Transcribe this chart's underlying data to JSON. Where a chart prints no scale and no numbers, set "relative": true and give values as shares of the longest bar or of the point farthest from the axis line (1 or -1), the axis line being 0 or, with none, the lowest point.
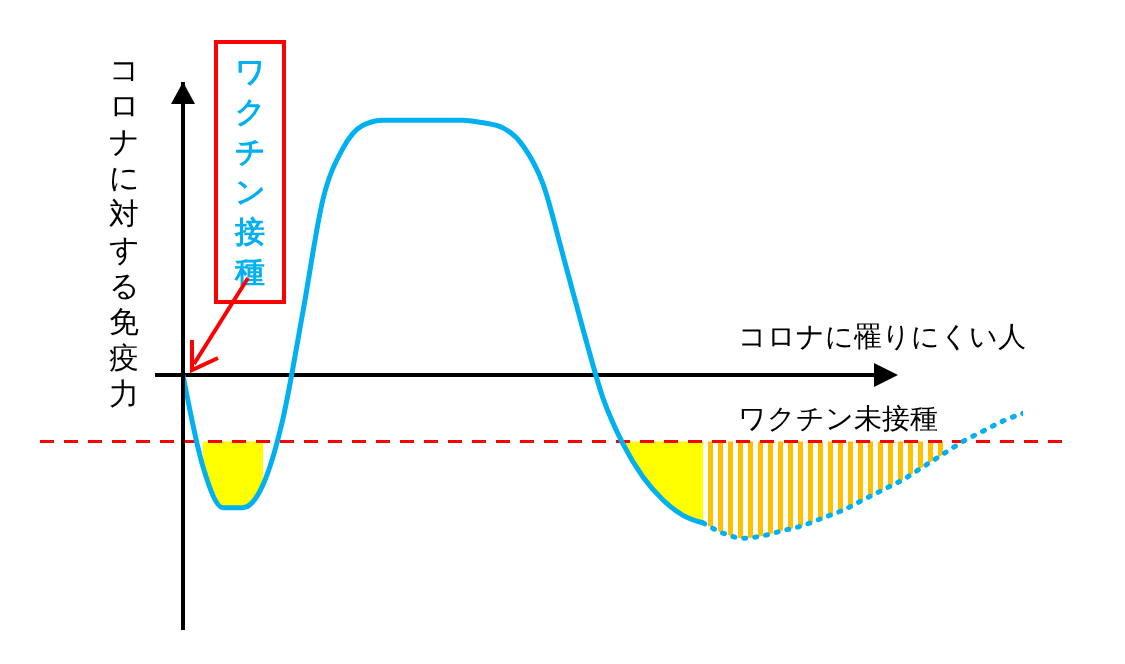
{
  "chart_data": {
    "type": "line",
    "relative": true,
    "ylabel": "コロナに対する免疫力",
    "annotations": [
      "ワクチン接種",
      "コロナに罹りにくい人",
      "ワクチン未接種"
    ],
    "categories": [
      null,
      null,
      null,
      null,
      null,
      null,
      null,
      null,
      null,
      null,
      null,
      null,
      null,
      null,
      null,
      null,
      null,
      null,
      null,
      null,
      null,
      null,
      null,
      null,
      null,
      null,
      null,
      null,
      null,
      null,
      null,
      null,
      null,
      null,
      null,
      null,
      null,
      null,
      null,
      null,
      null,
      null,
      null
    ],
    "series": [
      {
        "color": "#00b0f0",
        "line_style": "solid",
        "values": [
          0,
          -0.36,
          -0.52,
          -0.52,
          -0.43,
          -0.17,
          0.25,
          0.69,
          0.89,
          0.98,
          1,
          1,
          1,
          1,
          1,
          0.99,
          0.97,
          0.9,
          0.75,
          0.47,
          0.18,
          -0.09,
          -0.27,
          -0.4,
          -0.49,
          -0.55,
          -0.58,
          null,
          null,
          null,
          null,
          null,
          null,
          null,
          null,
          null,
          null,
          null,
          null,
          null,
          null,
          null,
          null
        ]
      },
      {
        "color": "#00b0f0",
        "line_style": "dotted",
        "values": [
          null,
          null,
          null,
          null,
          null,
          null,
          null,
          null,
          null,
          null,
          null,
          null,
          null,
          null,
          null,
          null,
          null,
          null,
          null,
          null,
          null,
          null,
          null,
          null,
          null,
          null,
          -0.58,
          -0.62,
          -0.64,
          -0.63,
          -0.61,
          -0.59,
          -0.56,
          -0.53,
          -0.49,
          -0.45,
          -0.41,
          -0.36,
          -0.31,
          -0.26,
          -0.22,
          -0.18,
          -0.15
        ]
      },
      {
        "type": "area",
        "color": "#ffff00",
        "values": [
          null,
          -0.36,
          -0.52,
          -0.52,
          -0.43,
          null,
          null,
          null,
          null,
          null,
          null,
          null,
          null,
          null,
          null,
          null,
          null,
          null,
          null,
          null,
          null,
          null,
          -0.27,
          -0.4,
          -0.49,
          -0.55,
          -0.58,
          null,
          null,
          null,
          null,
          null,
          null,
          null,
          null,
          null,
          null,
          null,
          null,
          null,
          null,
          null,
          null
        ]
      },
      {
        "type": "area",
        "color": "#ffc000",
        "values": [
          null,
          null,
          null,
          null,
          null,
          null,
          null,
          null,
          null,
          null,
          null,
          null,
          null,
          null,
          null,
          null,
          null,
          null,
          null,
          null,
          null,
          null,
          null,
          null,
          null,
          null,
          -0.58,
          -0.62,
          -0.64,
          -0.63,
          -0.61,
          -0.59,
          -0.56,
          -0.53,
          -0.49,
          -0.45,
          -0.41,
          -0.36,
          -0.31,
          null,
          null,
          null,
          null
        ]
      }
    ],
    "ref_lines": [
      {
        "axis": "y",
        "value": -0.26,
        "color": "#ff0000",
        "line_style": "dashed"
      }
    ]
  }
}
